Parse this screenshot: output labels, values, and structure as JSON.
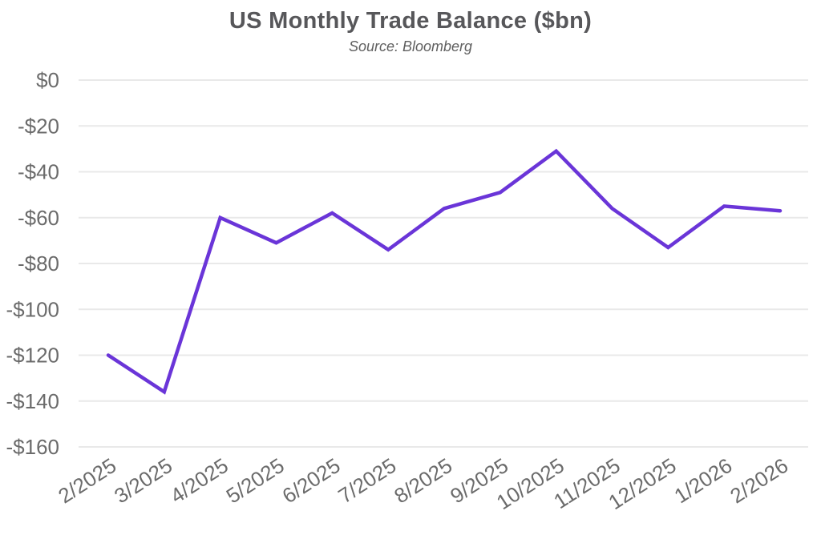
{
  "chart_data": {
    "type": "line",
    "title": "US Monthly Trade Balance ($bn)",
    "subtitle": "Source: Bloomberg",
    "categories": [
      "2/2025",
      "3/2025",
      "4/2025",
      "5/2025",
      "6/2025",
      "7/2025",
      "8/2025",
      "9/2025",
      "10/2025",
      "11/2025",
      "12/2025",
      "1/2026",
      "2/2026"
    ],
    "series": [
      {
        "name": "US monthly trade balance ($bn)",
        "values": [
          -120,
          -136,
          -60,
          -71,
          -58,
          -74,
          -56,
          -49,
          -31,
          -56,
          -73,
          -55,
          -57
        ]
      }
    ],
    "xlabel": "",
    "ylabel": "",
    "ylim": [
      0,
      -160
    ],
    "yticks": [
      0,
      -20,
      -40,
      -60,
      -80,
      -100,
      -120,
      -140,
      -160
    ],
    "ytick_labels": [
      "$0",
      "-$20",
      "-$40",
      "-$60",
      "-$80",
      "-$100",
      "-$120",
      "-$140",
      "-$160"
    ],
    "grid": true,
    "legend": false,
    "colors": {
      "line": "#6a35d8",
      "grid": "#e9e9e9",
      "tick_label": "#6b6b6b",
      "title": "#57575a",
      "subtitle": "#5f5f5f"
    }
  }
}
